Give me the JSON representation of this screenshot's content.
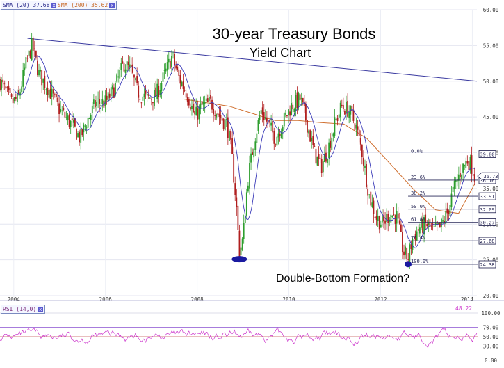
{
  "legend": {
    "sma20": "SMA (20) 37.68",
    "sma200": "SMA (200) 35.62",
    "rsi": "RSI (14,0)",
    "rsi_value": "48.22",
    "close_label": "x"
  },
  "colors": {
    "up_candle": "#2e9e2e",
    "down_candle": "#b01e1e",
    "sma20": "#3a3ab8",
    "sma200": "#d07030",
    "trendline": "#3a3aa0",
    "fib_line": "#2a2a5a",
    "rsi_line": "#cc33cc",
    "bottom_marker": "#1a1aa0"
  },
  "chart_data": {
    "type": "candlestick",
    "title": "30-year Treasury Bonds",
    "subtitle": "Yield Chart",
    "annotation": "Double-Bottom Formation?",
    "x_ticks": [
      "2004",
      "2006",
      "2008",
      "2010",
      "2012",
      "2014"
    ],
    "y_ticks": [
      "20.00",
      "25.00",
      "30.00",
      "35.00",
      "40.00",
      "45.00",
      "50.00",
      "55.00",
      "60.00"
    ],
    "ylim": [
      20,
      60
    ],
    "xlim": [
      2003.7,
      2014.1
    ],
    "price_anchors": [
      [
        2003.7,
        50
      ],
      [
        2003.95,
        47
      ],
      [
        2004.1,
        47.5
      ],
      [
        2004.25,
        52
      ],
      [
        2004.4,
        55
      ],
      [
        2004.55,
        51
      ],
      [
        2004.75,
        49
      ],
      [
        2005.0,
        46
      ],
      [
        2005.25,
        44
      ],
      [
        2005.45,
        42
      ],
      [
        2005.6,
        44.5
      ],
      [
        2005.8,
        47
      ],
      [
        2006.0,
        47
      ],
      [
        2006.2,
        49
      ],
      [
        2006.4,
        52.5
      ],
      [
        2006.55,
        51.5
      ],
      [
        2006.7,
        48.5
      ],
      [
        2006.9,
        47.5
      ],
      [
        2007.1,
        48
      ],
      [
        2007.3,
        51
      ],
      [
        2007.45,
        53.5
      ],
      [
        2007.6,
        50.5
      ],
      [
        2007.8,
        48
      ],
      [
        2007.95,
        45
      ],
      [
        2008.1,
        46.5
      ],
      [
        2008.3,
        47
      ],
      [
        2008.5,
        45
      ],
      [
        2008.65,
        44
      ],
      [
        2008.75,
        40
      ],
      [
        2008.85,
        33
      ],
      [
        2008.92,
        26
      ],
      [
        2009.0,
        28
      ],
      [
        2009.1,
        36
      ],
      [
        2009.25,
        42
      ],
      [
        2009.4,
        46
      ],
      [
        2009.55,
        44
      ],
      [
        2009.7,
        42
      ],
      [
        2009.85,
        44
      ],
      [
        2010.05,
        46.5
      ],
      [
        2010.25,
        47.5
      ],
      [
        2010.4,
        44
      ],
      [
        2010.55,
        40
      ],
      [
        2010.7,
        38
      ],
      [
        2010.85,
        40.5
      ],
      [
        2011.0,
        44
      ],
      [
        2011.15,
        46.5
      ],
      [
        2011.3,
        46
      ],
      [
        2011.45,
        44
      ],
      [
        2011.6,
        40
      ],
      [
        2011.75,
        34
      ],
      [
        2011.9,
        31
      ],
      [
        2012.05,
        30
      ],
      [
        2012.2,
        31.5
      ],
      [
        2012.35,
        31
      ],
      [
        2012.5,
        26
      ],
      [
        2012.6,
        25.3
      ],
      [
        2012.7,
        28
      ],
      [
        2012.85,
        29.5
      ],
      [
        2013.0,
        30
      ],
      [
        2013.15,
        29
      ],
      [
        2013.3,
        29.5
      ],
      [
        2013.45,
        31.5
      ],
      [
        2013.6,
        35
      ],
      [
        2013.75,
        37.5
      ],
      [
        2013.9,
        39
      ],
      [
        2014.0,
        38
      ],
      [
        2014.05,
        36.7
      ]
    ],
    "sma20": {
      "name": "SMA (20)",
      "last": 37.68
    },
    "sma200": {
      "name": "SMA (200)",
      "last": 35.62,
      "x": [
        2007.7,
        2008.2,
        2008.7,
        2009.2,
        2009.7,
        2010.2,
        2010.7,
        2011.2,
        2011.7,
        2012.2,
        2012.7,
        2013.2,
        2013.7,
        2014.05
      ],
      "y": [
        47.5,
        47,
        46.5,
        45.5,
        44.5,
        44.5,
        44.2,
        44,
        42,
        38.5,
        35,
        32,
        31.5,
        35.6
      ]
    },
    "trendline": {
      "x": [
        2004.3,
        2014.1
      ],
      "y": [
        56,
        50
      ]
    },
    "fibonacci": {
      "levels": [
        {
          "label": "0.0%",
          "value": 39.8,
          "tag": "39.80"
        },
        {
          "label": "23.6%",
          "value": 36.16,
          "tag": "36.16"
        },
        {
          "label": "38.2%",
          "value": 33.91,
          "tag": "33.91"
        },
        {
          "label": "50.0%",
          "value": 32.09,
          "tag": "32.09"
        },
        {
          "label": "61.8%",
          "value": 30.27,
          "tag": "30.27"
        },
        {
          "label": "76.4%",
          "value": 27.68,
          "tag": "27.68"
        },
        {
          "label": "100.0%",
          "value": 24.38,
          "tag": "24.38"
        }
      ],
      "x_start": 2012.6
    },
    "last_price_tag": "36.73",
    "last_price": 36.73,
    "double_bottom_markers": [
      {
        "x": 2008.92,
        "y": 25.1
      },
      {
        "x": 2012.6,
        "y": 24.4
      }
    ],
    "rsi": {
      "name": "RSI (14,0)",
      "last": 48.22,
      "y_ticks": [
        "0.00",
        "30.00",
        "50.00",
        "70.00",
        "100.00"
      ],
      "ylim": [
        0,
        100
      ],
      "guide_levels": [
        30,
        50,
        70
      ]
    }
  }
}
